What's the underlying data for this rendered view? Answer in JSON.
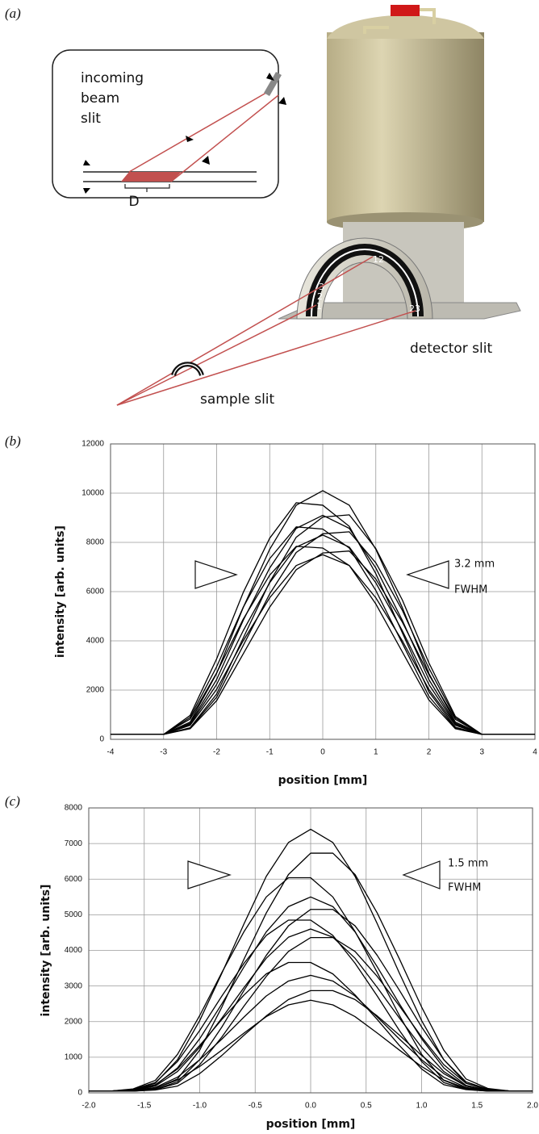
{
  "panel_a": {
    "label": "(a)",
    "inset_labels": [
      "incoming",
      "beam",
      "slit"
    ],
    "inset_dimension": "D",
    "detector_numbers": [
      "12",
      "3",
      "2",
      "1",
      "23"
    ],
    "detector_label": "detector slit",
    "sample_label": "sample slit"
  },
  "chart_data": [
    {
      "type": "line",
      "panel_label": "(b)",
      "x_label": "position [mm]",
      "y_label": "intensity [arb. units]",
      "annotation": [
        "3.2 mm",
        "FWHM"
      ],
      "grid": true,
      "color": "#000000",
      "x": [
        -4,
        -3.5,
        -3,
        -2.5,
        -2,
        -1.5,
        -1,
        -0.5,
        0,
        0.5,
        1,
        1.5,
        2,
        2.5,
        3,
        3.5,
        4
      ],
      "xlim": [
        -4,
        4
      ],
      "xticks": [
        -4,
        -3,
        -2,
        -1,
        0,
        1,
        2,
        3,
        4
      ],
      "ylim": [
        0,
        12000
      ],
      "yticks": [
        0,
        2000,
        4000,
        6000,
        8000,
        10000,
        12000
      ],
      "series": [
        {
          "values": [
            200,
            200,
            200,
            700,
            2680,
            5350,
            7720,
            9510,
            10100,
            9510,
            7720,
            5350,
            2680,
            700,
            200,
            200,
            200
          ]
        },
        {
          "values": [
            200,
            200,
            200,
            970,
            3270,
            5960,
            8170,
            9610,
            9510,
            8650,
            6730,
            4330,
            1930,
            490,
            200,
            200,
            200
          ]
        },
        {
          "values": [
            200,
            200,
            200,
            470,
            1840,
            4110,
            6390,
            8210,
            9030,
            9120,
            7750,
            5660,
            3110,
            930,
            200,
            200,
            200
          ]
        },
        {
          "values": [
            200,
            200,
            200,
            650,
            2430,
            4830,
            6960,
            8570,
            9100,
            8570,
            6960,
            4830,
            2430,
            650,
            200,
            200,
            200
          ]
        },
        {
          "values": [
            200,
            200,
            200,
            890,
            2950,
            5360,
            7340,
            8630,
            8540,
            7770,
            6050,
            3900,
            1750,
            460,
            200,
            200,
            200
          ]
        },
        {
          "values": [
            200,
            200,
            200,
            450,
            1710,
            3810,
            5910,
            7590,
            8350,
            8430,
            7170,
            5240,
            2890,
            870,
            200,
            200,
            200
          ]
        },
        {
          "values": [
            200,
            200,
            200,
            610,
            2230,
            4410,
            6360,
            7810,
            8300,
            7810,
            6360,
            4410,
            2230,
            610,
            200,
            200,
            200
          ]
        },
        {
          "values": [
            200,
            200,
            200,
            820,
            2700,
            4880,
            6670,
            7840,
            7770,
            7060,
            5500,
            3550,
            1600,
            430,
            200,
            200,
            200
          ]
        },
        {
          "values": [
            200,
            200,
            200,
            430,
            1570,
            3470,
            5370,
            6890,
            7570,
            7650,
            6510,
            4760,
            2630,
            810,
            200,
            200,
            200
          ]
        },
        {
          "values": [
            200,
            200,
            200,
            570,
            2030,
            4000,
            5750,
            7060,
            7500,
            7060,
            5750,
            4000,
            2030,
            570,
            200,
            200,
            200
          ]
        }
      ]
    },
    {
      "type": "line",
      "panel_label": "(c)",
      "x_label": "position [mm]",
      "y_label": "intensity [arb. units]",
      "annotation": [
        "1.5 mm",
        "FWHM"
      ],
      "grid": true,
      "color": "#000000",
      "x": [
        -2,
        -1.8,
        -1.6,
        -1.4,
        -1.2,
        -1,
        -0.8,
        -0.6,
        -0.4,
        -0.2,
        0,
        0.2,
        0.4,
        0.6,
        0.8,
        1,
        1.2,
        1.4,
        1.6,
        1.8,
        2
      ],
      "xlim": [
        -2,
        2
      ],
      "xticks": [
        {
          "value": -2,
          "label": "-2.0"
        },
        -1.5,
        {
          "value": -1,
          "label": "-1.0"
        },
        -0.5,
        {
          "value": 0,
          "label": "0.0"
        },
        0.5,
        {
          "value": 1,
          "label": "1.0"
        },
        1.5,
        {
          "value": 2,
          "label": "2.0"
        }
      ],
      "ylim": [
        0,
        8000
      ],
      "yticks": [
        0,
        1000,
        2000,
        3000,
        4000,
        5000,
        6000,
        7000,
        8000
      ],
      "series": [
        {
          "values": [
            50,
            50,
            90,
            270,
            930,
            2030,
            3360,
            4750,
            6080,
            7030,
            7400,
            7030,
            6080,
            4750,
            3360,
            2030,
            930,
            270,
            90,
            50,
            50
          ]
        },
        {
          "values": [
            50,
            50,
            50,
            120,
            390,
            1200,
            2410,
            3760,
            5050,
            6130,
            6730,
            6730,
            6130,
            5050,
            3760,
            2410,
            1200,
            390,
            120,
            50,
            50
          ]
        },
        {
          "values": [
            50,
            50,
            110,
            350,
            1080,
            2170,
            3380,
            4530,
            5500,
            6040,
            6040,
            5500,
            4530,
            3380,
            2170,
            1080,
            350,
            110,
            50,
            50,
            50
          ]
        },
        {
          "values": [
            50,
            50,
            80,
            210,
            700,
            1520,
            2500,
            3540,
            4520,
            5230,
            5500,
            5230,
            4520,
            3540,
            2500,
            1520,
            700,
            210,
            80,
            50,
            50
          ]
        },
        {
          "values": [
            50,
            50,
            50,
            100,
            310,
            930,
            1850,
            2880,
            3860,
            4690,
            5150,
            5150,
            4690,
            3860,
            2880,
            1850,
            930,
            310,
            100,
            50,
            50
          ]
        },
        {
          "values": [
            50,
            50,
            100,
            290,
            880,
            1750,
            2720,
            3640,
            4420,
            4850,
            4850,
            4420,
            3640,
            2720,
            1750,
            880,
            290,
            100,
            50,
            50,
            50
          ]
        },
        {
          "values": [
            50,
            50,
            70,
            190,
            600,
            1280,
            2100,
            2960,
            3780,
            4370,
            4600,
            4370,
            3780,
            2960,
            2100,
            1280,
            600,
            190,
            70,
            50,
            50
          ]
        },
        {
          "values": [
            50,
            50,
            50,
            90,
            270,
            790,
            1570,
            2440,
            3270,
            3970,
            4360,
            4360,
            3970,
            3270,
            2440,
            1570,
            790,
            270,
            90,
            50,
            50
          ]
        },
        {
          "values": [
            50,
            50,
            90,
            230,
            670,
            1330,
            2060,
            2750,
            3340,
            3660,
            3660,
            3340,
            2750,
            2060,
            1330,
            670,
            230,
            90,
            50,
            50,
            50
          ]
        },
        {
          "values": [
            50,
            50,
            70,
            150,
            440,
            930,
            1510,
            2130,
            2720,
            3140,
            3300,
            3140,
            2720,
            2130,
            1510,
            930,
            440,
            150,
            70,
            50,
            50
          ]
        },
        {
          "values": [
            50,
            50,
            50,
            80,
            190,
            540,
            1050,
            1620,
            2160,
            2620,
            2870,
            2870,
            2620,
            2160,
            1620,
            1050,
            540,
            190,
            80,
            50,
            50
          ]
        },
        {
          "values": [
            50,
            50,
            60,
            130,
            360,
            740,
            1200,
            1680,
            2140,
            2470,
            2600,
            2470,
            2140,
            1680,
            1200,
            740,
            360,
            130,
            60,
            50,
            50
          ]
        }
      ]
    }
  ]
}
